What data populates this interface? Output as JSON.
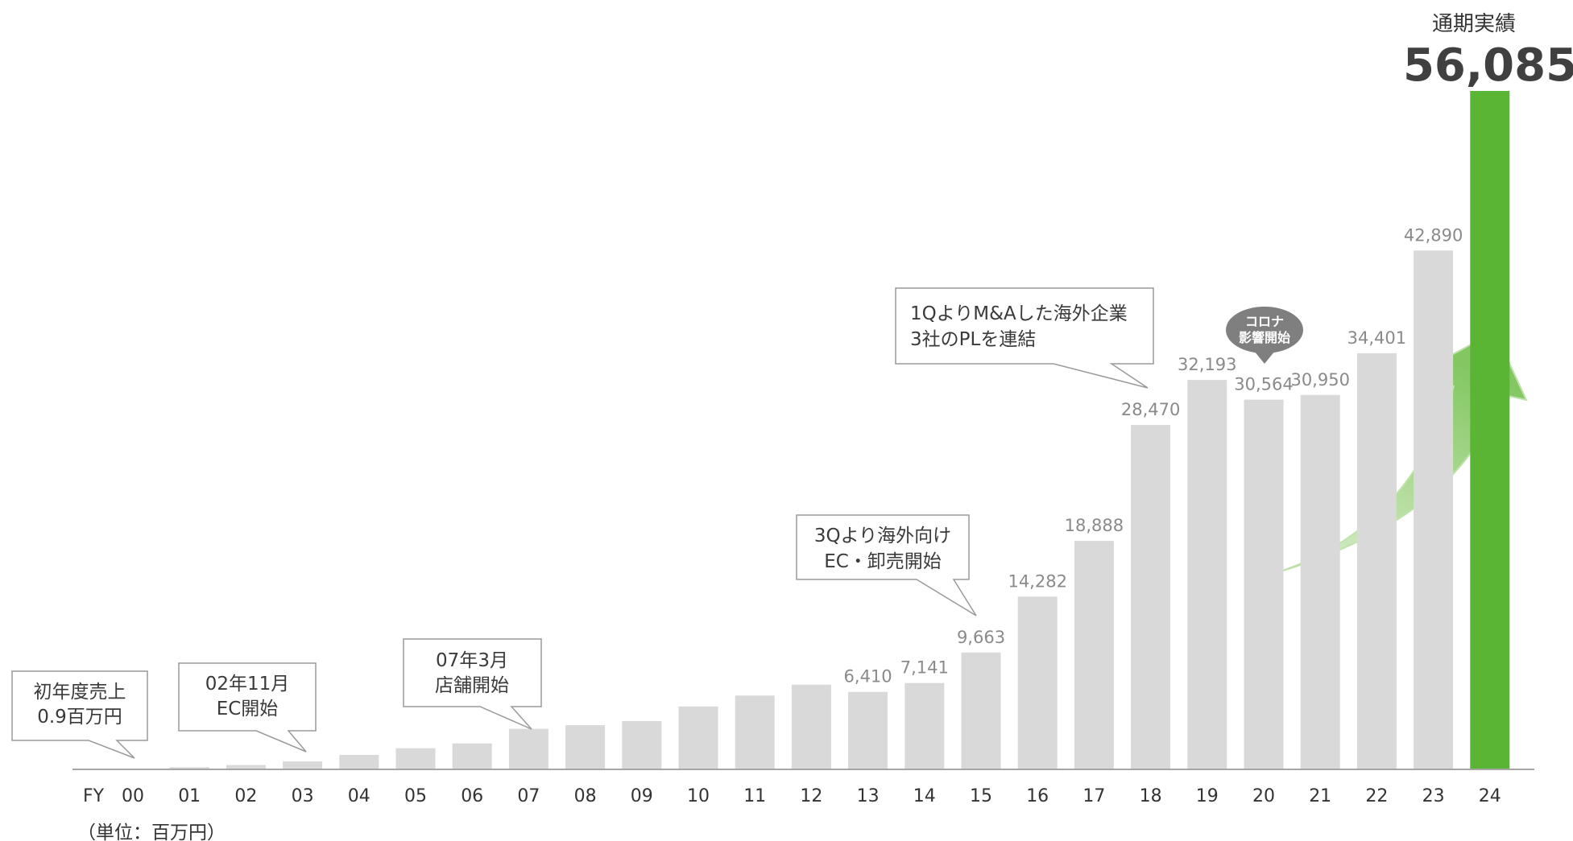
{
  "chart_data": {
    "type": "bar",
    "x_prefix": "FY",
    "categories": [
      "00",
      "01",
      "02",
      "03",
      "04",
      "05",
      "06",
      "07",
      "08",
      "09",
      "10",
      "11",
      "12",
      "13",
      "14",
      "15",
      "16",
      "17",
      "18",
      "19",
      "20",
      "21",
      "22",
      "23",
      "24"
    ],
    "values": [
      1,
      180,
      360,
      650,
      1200,
      1750,
      2150,
      3350,
      3650,
      4000,
      5200,
      6100,
      7000,
      6410,
      7141,
      9663,
      14282,
      18888,
      28470,
      32193,
      30564,
      30950,
      34401,
      42890,
      56085
    ],
    "labels": [
      "",
      "",
      "",
      "",
      "",
      "",
      "",
      "",
      "",
      "",
      "",
      "",
      "",
      "6,410",
      "7,141",
      "9,663",
      "14,282",
      "18,888",
      "28,470",
      "32,193",
      "30,564",
      "30,950",
      "34,401",
      "42,890",
      ""
    ],
    "highlight_index": 24,
    "unit": "（単位：百万円）",
    "ylim": [
      0,
      56085
    ],
    "grid": false,
    "colors": {
      "bar": "#d9d9d9",
      "highlight": "#5bb534",
      "axis": "#a6a6a6",
      "label": "#8a8a8a"
    },
    "final": {
      "caption": "通期実績",
      "value": "56,085"
    },
    "annotations": [
      {
        "lines": [
          "初年度売上",
          "0.9百万円"
        ],
        "target_index": 0
      },
      {
        "lines": [
          "02年11月",
          "EC開始"
        ],
        "target_index": 3
      },
      {
        "lines": [
          "07年3月",
          "店舗開始"
        ],
        "target_index": 7
      },
      {
        "lines": [
          "3Qより海外向け",
          "EC・卸売開始"
        ],
        "target_index": 15
      },
      {
        "lines": [
          "1QよりM&Aした海外企業",
          "3社のPLを連結"
        ],
        "target_index": 18
      }
    ],
    "bubble": {
      "lines": [
        "コロナ",
        "影響開始"
      ],
      "target_index": 20
    }
  }
}
